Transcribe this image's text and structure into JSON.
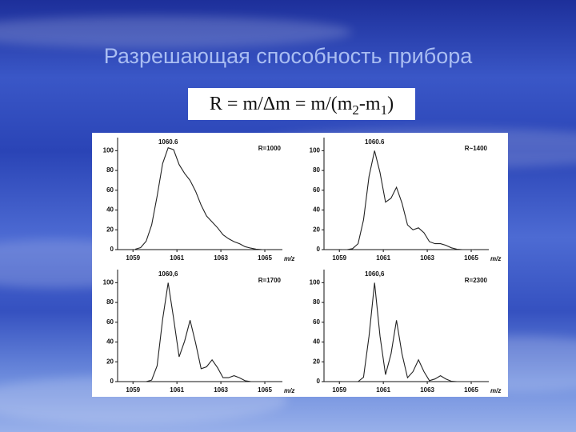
{
  "title": "Разрешающая способность прибора",
  "formula": {
    "lhs": "R = m/Δm = m/(m",
    "sub2": "2",
    "mid": "-m",
    "sub1": "1",
    "end": ")"
  },
  "chart_data": [
    {
      "type": "line",
      "peak_label": "1060.6",
      "resolution_label": "R=1000",
      "x_label": "m/z",
      "xlim": [
        1058.3,
        1065.8
      ],
      "xticks": [
        1059,
        1061,
        1063,
        1065
      ],
      "ylim": [
        0,
        110
      ],
      "yticks": [
        0,
        20,
        40,
        60,
        80,
        100
      ],
      "x": [
        1059.1,
        1059.35,
        1059.6,
        1059.85,
        1060.1,
        1060.35,
        1060.6,
        1060.85,
        1061.1,
        1061.35,
        1061.6,
        1061.85,
        1062.1,
        1062.35,
        1062.6,
        1062.85,
        1063.1,
        1063.35,
        1063.6,
        1063.85,
        1064.1,
        1064.35,
        1064.6,
        1064.85,
        1065.1
      ],
      "values": [
        0.4,
        2,
        8.5,
        25,
        54,
        87,
        103,
        101,
        86,
        77,
        70,
        59,
        45,
        34,
        28,
        22,
        15,
        11,
        8,
        6,
        3,
        1.5,
        0.5,
        0.1,
        0
      ],
      "color": "#222222"
    },
    {
      "type": "line",
      "peak_label": "1060.6",
      "resolution_label": "R~1400",
      "x_label": "m/z",
      "xlim": [
        1058.3,
        1065.8
      ],
      "xticks": [
        1059,
        1061,
        1063,
        1065
      ],
      "ylim": [
        0,
        110
      ],
      "yticks": [
        0,
        20,
        40,
        60,
        80,
        100
      ],
      "x": [
        1059.1,
        1059.35,
        1059.6,
        1059.85,
        1060.1,
        1060.35,
        1060.6,
        1060.85,
        1061.1,
        1061.35,
        1061.6,
        1061.85,
        1062.1,
        1062.35,
        1062.6,
        1062.85,
        1063.1,
        1063.35,
        1063.6,
        1063.85,
        1064.1,
        1064.35,
        1064.6,
        1064.85,
        1065.1
      ],
      "values": [
        0,
        0,
        1,
        6,
        30,
        74,
        100,
        78,
        48,
        52,
        63,
        47,
        25,
        20,
        22,
        17,
        8,
        6,
        6,
        4.4,
        1.8,
        0.4,
        0,
        0,
        0
      ],
      "color": "#222222"
    },
    {
      "type": "line",
      "peak_label": "1060,6",
      "resolution_label": "R=1700",
      "x_label": "m/z",
      "xlim": [
        1058.3,
        1065.8
      ],
      "xticks": [
        1059,
        1061,
        1063,
        1065
      ],
      "ylim": [
        0,
        110
      ],
      "yticks": [
        0,
        20,
        40,
        60,
        80,
        100
      ],
      "x": [
        1059.1,
        1059.35,
        1059.6,
        1059.85,
        1060.1,
        1060.35,
        1060.6,
        1060.85,
        1061.1,
        1061.35,
        1061.6,
        1061.85,
        1062.1,
        1062.35,
        1062.6,
        1062.85,
        1063.1,
        1063.35,
        1063.6,
        1063.85,
        1064.1,
        1064.35,
        1064.6,
        1064.85,
        1065.1
      ],
      "values": [
        0,
        0,
        0,
        1.5,
        16,
        63,
        100,
        64,
        25,
        41,
        62,
        39,
        13,
        15,
        22,
        14,
        4,
        4,
        6,
        3.8,
        0.9,
        0.1,
        0,
        0,
        0
      ],
      "color": "#222222"
    },
    {
      "type": "line",
      "peak_label": "1060,6",
      "resolution_label": "R=2300",
      "x_label": "m/z",
      "xlim": [
        1058.3,
        1065.8
      ],
      "xticks": [
        1059,
        1061,
        1063,
        1065
      ],
      "ylim": [
        0,
        110
      ],
      "yticks": [
        0,
        20,
        40,
        60,
        80,
        100
      ],
      "x": [
        1059.1,
        1059.35,
        1059.6,
        1059.85,
        1060.1,
        1060.35,
        1060.6,
        1060.85,
        1061.1,
        1061.35,
        1061.6,
        1061.85,
        1062.1,
        1062.35,
        1062.6,
        1062.85,
        1063.1,
        1063.35,
        1063.6,
        1063.85,
        1064.1,
        1064.35,
        1064.6,
        1064.85,
        1065.1
      ],
      "values": [
        0,
        0,
        0,
        0,
        4.4,
        46,
        100,
        46,
        7,
        28,
        62,
        28,
        4,
        10,
        22,
        10,
        1,
        2.7,
        6,
        2.7,
        0.3,
        0,
        0,
        0,
        0
      ],
      "color": "#222222"
    }
  ]
}
